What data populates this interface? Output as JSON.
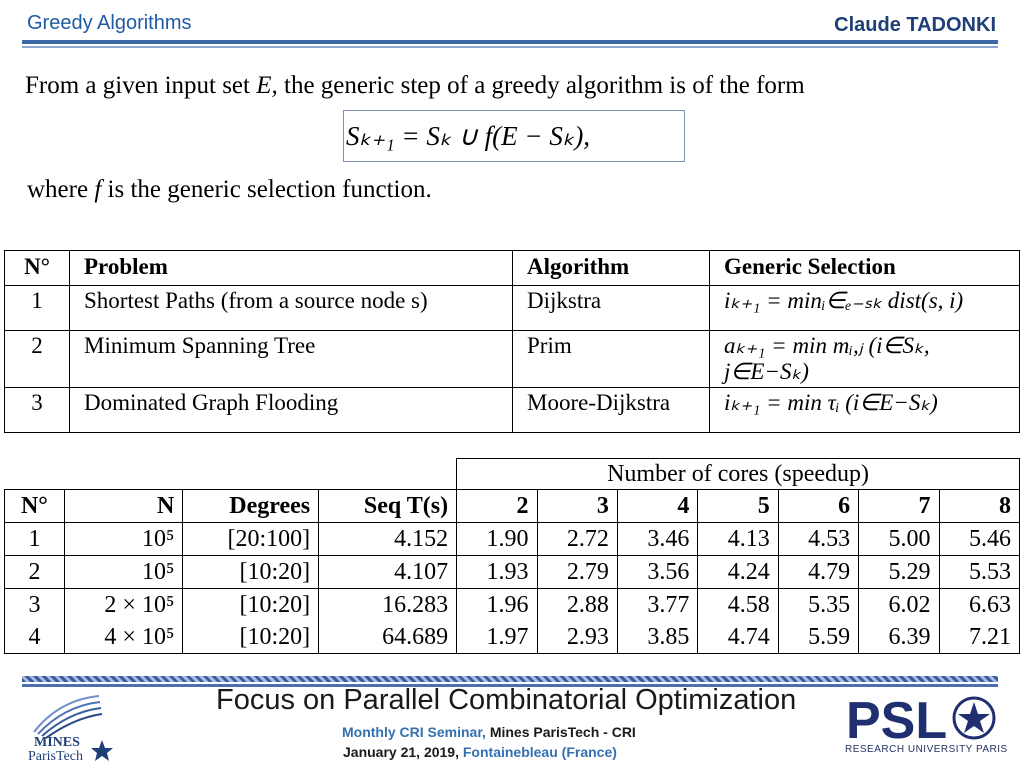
{
  "header": {
    "left": "Greedy Algorithms",
    "right": "Claude TADONKI"
  },
  "intro": {
    "line1_a": "From a given input set",
    "line1_var": "E,",
    "line1_b": "the generic step of a greedy algorithm is of the form",
    "formula": "Sₖ₊₁ = Sₖ ∪ f(E − Sₖ),",
    "line3_a": "where",
    "line3_var": "f",
    "line3_b": "is the generic selection function."
  },
  "table1": {
    "headers": [
      "N°",
      "Problem",
      "Algorithm",
      "Generic Selection"
    ],
    "rows": [
      {
        "n": "1",
        "problem": "Shortest Paths (from a source node s)",
        "algorithm": "Dijkstra",
        "selection": "iₖ₊₁ = minᵢ∈ₑ₋ₛₖ dist(s, i)"
      },
      {
        "n": "2",
        "problem": "Minimum Spanning Tree",
        "algorithm": "Prim",
        "selection": "aₖ₊₁ = min mᵢ,ⱼ  (i∈Sₖ, j∈E−Sₖ)"
      },
      {
        "n": "3",
        "problem": "Dominated Graph Flooding",
        "algorithm": "Moore-Dijkstra",
        "selection": "iₖ₊₁ = min τᵢ  (i∈E−Sₖ)"
      }
    ]
  },
  "table2": {
    "group_header": "Number of cores (speedup)",
    "headers": [
      "N°",
      "N",
      "Degrees",
      "Seq T(s)",
      "2",
      "3",
      "4",
      "5",
      "6",
      "7",
      "8"
    ],
    "rows": [
      [
        "1",
        "10⁵",
        "[20:100]",
        "4.152",
        "1.90",
        "2.72",
        "3.46",
        "4.13",
        "4.53",
        "5.00",
        "5.46"
      ],
      [
        "2",
        "10⁵",
        "[10:20]",
        "4.107",
        "1.93",
        "2.79",
        "3.56",
        "4.24",
        "4.79",
        "5.29",
        "5.53"
      ],
      [
        "3",
        "2 × 10⁵",
        "[10:20]",
        "16.283",
        "1.96",
        "2.88",
        "3.77",
        "4.58",
        "5.35",
        "6.02",
        "6.63"
      ],
      [
        "4",
        "4 × 10⁵",
        "[10:20]",
        "64.689",
        "1.97",
        "2.93",
        "3.85",
        "4.74",
        "5.59",
        "6.39",
        "7.21"
      ]
    ]
  },
  "footer": {
    "title": "Focus on Parallel Combinatorial Optimization",
    "seminar": "Monthly CRI Seminar,",
    "org": "Mines ParisTech - CRI",
    "date": "January 21, 2019,",
    "place": "Fontainebleau (France)",
    "mines_1": "MINES",
    "mines_2": "ParisTech",
    "psl": "PSL",
    "psl_sub": "RESEARCH UNIVERSITY PARIS"
  }
}
